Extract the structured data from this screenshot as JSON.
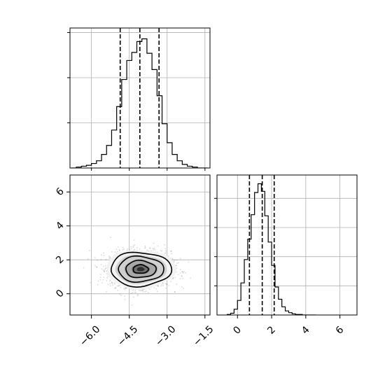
{
  "chart_data": [
    {
      "panel": "marginal-x",
      "type": "histogram",
      "bin_edges": [
        -6.8,
        -6.6,
        -6.4,
        -6.2,
        -6.0,
        -5.8,
        -5.6,
        -5.4,
        -5.2,
        -5.0,
        -4.8,
        -4.6,
        -4.4,
        -4.2,
        -4.0,
        -3.8,
        -3.6,
        -3.4,
        -3.2,
        -3.0,
        -2.8,
        -2.6,
        -2.4,
        -2.2,
        -2.0,
        -1.8,
        -1.6,
        -1.4
      ],
      "counts": [
        0,
        1,
        2,
        3,
        5,
        8,
        15,
        25,
        42,
        68,
        98,
        119,
        128,
        140,
        143,
        127,
        109,
        80,
        49,
        28,
        15,
        8,
        4,
        2,
        1,
        0,
        0
      ],
      "quantiles": [
        -4.86,
        -4.08,
        -3.32
      ],
      "xlim": [
        -6.85,
        -1.3
      ],
      "ylim": [
        0,
        155
      ],
      "grid": true
    },
    {
      "panel": "joint",
      "type": "2d-histogram-contour",
      "x_center": -4.05,
      "y_center": 1.45,
      "x_sd": 0.6,
      "y_sd": 0.5,
      "contour_levels": [
        "0.5-sigma",
        "1-sigma",
        "1.5-sigma",
        "2-sigma"
      ],
      "xlim": [
        -6.85,
        -1.3
      ],
      "ylim": [
        -1.25,
        7.0
      ],
      "xticks": [
        "−6.0",
        "−4.5",
        "−3.0",
        "−1.5"
      ],
      "xtick_values": [
        -6.0,
        -4.5,
        -3.0,
        -1.5
      ],
      "yticks": [
        "0",
        "2",
        "4",
        "6"
      ],
      "ytick_values": [
        0,
        2,
        4,
        6
      ],
      "grid": true
    },
    {
      "panel": "marginal-y",
      "type": "histogram",
      "bin_edges": [
        -0.6,
        -0.4,
        -0.2,
        0.0,
        0.2,
        0.4,
        0.6,
        0.8,
        1.0,
        1.2,
        1.4,
        1.6,
        1.8,
        2.0,
        2.2,
        2.4,
        2.6,
        2.8,
        3.0,
        3.2,
        3.4,
        3.6,
        3.8,
        4.0,
        4.2,
        4.4,
        4.6
      ],
      "counts": [
        1,
        3,
        10,
        25,
        55,
        95,
        130,
        172,
        210,
        225,
        212,
        170,
        125,
        85,
        48,
        27,
        14,
        7,
        4,
        2,
        1,
        1,
        0,
        0,
        0,
        0
      ],
      "quantiles": [
        0.7,
        1.45,
        2.15
      ],
      "xlim": [
        -1.2,
        7.0
      ],
      "ylim": [
        0,
        240
      ],
      "xticks": [
        "0",
        "2",
        "4",
        "6"
      ],
      "xtick_values": [
        0,
        2,
        4,
        6
      ],
      "grid": true
    }
  ]
}
